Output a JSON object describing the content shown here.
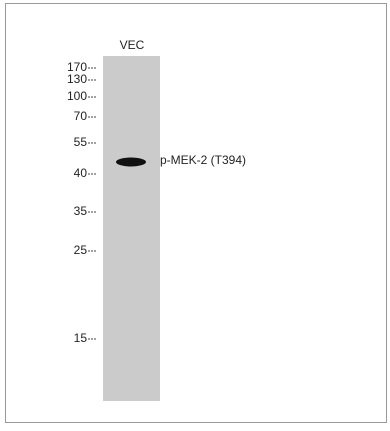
{
  "lane_label": "VEC",
  "markers": [
    "170",
    "130",
    "100",
    "70",
    "55",
    "40",
    "35",
    "25",
    "15"
  ],
  "band_label": "p-MEK-2 (T394)"
}
